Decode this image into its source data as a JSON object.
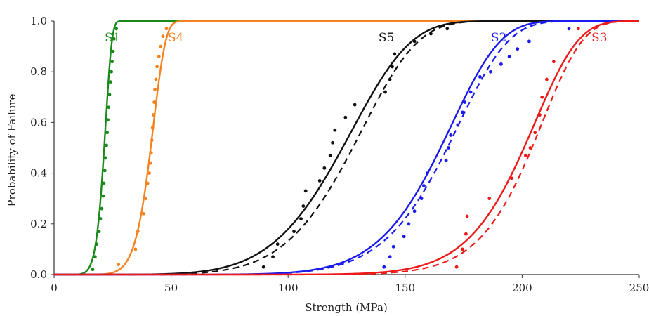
{
  "chart_data": {
    "type": "line",
    "title": "",
    "xlabel": "Strength (MPa)",
    "ylabel": "Probability of Failure",
    "xlim": [
      0,
      250
    ],
    "ylim": [
      0,
      1.0
    ],
    "xticks": [
      "0",
      "50",
      "100",
      "150",
      "200",
      "250"
    ],
    "yticks": [
      "0.0",
      "0.2",
      "0.4",
      "0.6",
      "0.8",
      "1.0"
    ],
    "grid": false,
    "legend": "none",
    "series": [
      {
        "name": "S1",
        "color": "#1a8a1a",
        "weibull_fit": {
          "scale": 22.3,
          "shape": 9.0
        },
        "weibull_fit_dashed": null,
        "points": [
          [
            16.5,
            0.02
          ],
          [
            17.5,
            0.07
          ],
          [
            18.2,
            0.12
          ],
          [
            19.2,
            0.17
          ],
          [
            19.8,
            0.22
          ],
          [
            20.4,
            0.26
          ],
          [
            21.0,
            0.31
          ],
          [
            21.3,
            0.36
          ],
          [
            21.7,
            0.41
          ],
          [
            22.0,
            0.46
          ],
          [
            22.4,
            0.51
          ],
          [
            22.7,
            0.56
          ],
          [
            23.0,
            0.61
          ],
          [
            23.3,
            0.66
          ],
          [
            23.7,
            0.71
          ],
          [
            24.1,
            0.76
          ],
          [
            24.5,
            0.8
          ],
          [
            24.8,
            0.84
          ],
          [
            25.2,
            0.88
          ],
          [
            25.6,
            0.93
          ],
          [
            26.6,
            0.97
          ]
        ]
      },
      {
        "name": "S4",
        "color": "#f5821f",
        "weibull_fit": {
          "scale": 43.0,
          "shape": 9.0
        },
        "weibull_fit_dashed": null,
        "points": [
          [
            27.5,
            0.04
          ],
          [
            34.8,
            0.1
          ],
          [
            35.8,
            0.17
          ],
          [
            38.2,
            0.24
          ],
          [
            39.2,
            0.3
          ],
          [
            40.0,
            0.36
          ],
          [
            40.7,
            0.4
          ],
          [
            41.2,
            0.44
          ],
          [
            41.5,
            0.48
          ],
          [
            41.8,
            0.53
          ],
          [
            42.1,
            0.58
          ],
          [
            42.4,
            0.63
          ],
          [
            42.8,
            0.68
          ],
          [
            43.1,
            0.73
          ],
          [
            43.5,
            0.77
          ],
          [
            44.0,
            0.82
          ],
          [
            44.8,
            0.86
          ],
          [
            45.6,
            0.9
          ],
          [
            46.5,
            0.94
          ],
          [
            48.0,
            0.97
          ]
        ]
      },
      {
        "name": "S5",
        "color": "#111111",
        "weibull_fit": {
          "scale": 131.0,
          "shape": 6.0
        },
        "weibull_fit_dashed": {
          "scale": 135.0,
          "shape": 6.5
        },
        "points": [
          [
            89.5,
            0.03
          ],
          [
            93.5,
            0.07
          ],
          [
            95.5,
            0.12
          ],
          [
            102.5,
            0.17
          ],
          [
            105.5,
            0.22
          ],
          [
            106.5,
            0.27
          ],
          [
            107.5,
            0.33
          ],
          [
            113.5,
            0.37
          ],
          [
            115.5,
            0.42
          ],
          [
            118.0,
            0.47
          ],
          [
            119.0,
            0.52
          ],
          [
            120.0,
            0.57
          ],
          [
            124.5,
            0.62
          ],
          [
            128.5,
            0.67
          ],
          [
            141.5,
            0.72
          ],
          [
            143.5,
            0.77
          ],
          [
            144.5,
            0.82
          ],
          [
            145.5,
            0.87
          ],
          [
            154.0,
            0.92
          ],
          [
            161.0,
            0.95
          ],
          [
            168.0,
            0.97
          ]
        ]
      },
      {
        "name": "S2",
        "color": "#1a1aee",
        "weibull_fit": {
          "scale": 172.0,
          "shape": 9.0
        },
        "weibull_fit_dashed": {
          "scale": 175.0,
          "shape": 9.0
        },
        "points": [
          [
            141.0,
            0.03
          ],
          [
            143.5,
            0.07
          ],
          [
            145.0,
            0.11
          ],
          [
            149.5,
            0.15
          ],
          [
            151.5,
            0.2
          ],
          [
            154.0,
            0.25
          ],
          [
            157.0,
            0.3
          ],
          [
            158.0,
            0.35
          ],
          [
            159.5,
            0.4
          ],
          [
            167.5,
            0.45
          ],
          [
            168.5,
            0.5
          ],
          [
            169.5,
            0.55
          ],
          [
            172.5,
            0.59
          ],
          [
            174.5,
            0.64
          ],
          [
            175.5,
            0.68
          ],
          [
            178.0,
            0.72
          ],
          [
            182.0,
            0.78
          ],
          [
            186.5,
            0.8
          ],
          [
            191.0,
            0.83
          ],
          [
            194.5,
            0.86
          ],
          [
            198.0,
            0.89
          ],
          [
            203.0,
            0.92
          ],
          [
            220.0,
            0.97
          ]
        ]
      },
      {
        "name": "S3",
        "color": "#ee1a1a",
        "weibull_fit": {
          "scale": 207.0,
          "shape": 12.0
        },
        "weibull_fit_dashed": {
          "scale": 210.0,
          "shape": 13.0
        },
        "points": [
          [
            172.0,
            0.03
          ],
          [
            174.5,
            0.1
          ],
          [
            176.0,
            0.16
          ],
          [
            176.5,
            0.23
          ],
          [
            186.0,
            0.3
          ],
          [
            195.5,
            0.38
          ],
          [
            201.5,
            0.47
          ],
          [
            203.5,
            0.5
          ],
          [
            205.5,
            0.56
          ],
          [
            207.5,
            0.63
          ],
          [
            208.5,
            0.7
          ],
          [
            210.5,
            0.77
          ],
          [
            213.5,
            0.84
          ],
          [
            224.0,
            0.97
          ]
        ]
      }
    ]
  }
}
